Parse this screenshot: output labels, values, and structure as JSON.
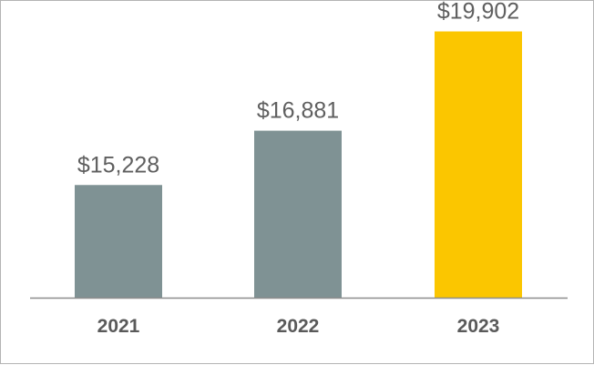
{
  "chart_data": {
    "type": "bar",
    "categories": [
      "2021",
      "2022",
      "2023"
    ],
    "values": [
      15228,
      16881,
      19902
    ],
    "data_labels": [
      "$15,228",
      "$16,881",
      "$19,902"
    ],
    "colors": [
      "#7f9294",
      "#7f9294",
      "#fbc600"
    ],
    "axis_color": "#8c8c8c",
    "ylim": [
      11800,
      20000
    ],
    "grid": false,
    "legend": "none"
  }
}
